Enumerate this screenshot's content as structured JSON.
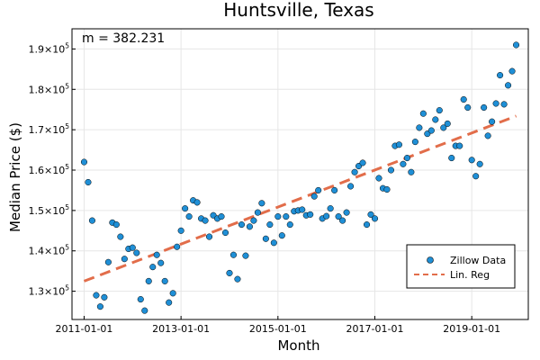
{
  "chart_data": {
    "type": "scatter",
    "title": "Huntsville, Texas",
    "xlabel": "Month",
    "ylabel": "Median Price ($)",
    "annotation": "m = 382.231",
    "x_tick_labels": [
      "2011-01-01",
      "2013-01-01",
      "2015-01-01",
      "2017-01-01",
      "2019-01-01"
    ],
    "x_tick_index": [
      0,
      24,
      48,
      72,
      96
    ],
    "y_ticks": [
      130000,
      140000,
      150000,
      160000,
      170000,
      180000,
      190000
    ],
    "y_tick_mantissa": [
      "1.3×10",
      "1.4×10",
      "1.5×10",
      "1.6×10",
      "1.7×10",
      "1.8×10",
      "1.9×10"
    ],
    "y_tick_exponent": "5",
    "xlim": [
      -3,
      110
    ],
    "ylim": [
      123000,
      195000
    ],
    "grid": true,
    "legend_position": "bottom-right",
    "legend": [
      {
        "label": "Zillow Data",
        "kind": "marker",
        "color": "#1f8fd6"
      },
      {
        "label": "Lin. Reg",
        "kind": "dashed-line",
        "color": "#e26d4a"
      }
    ],
    "series": [
      {
        "name": "Zillow Data",
        "color": "#1f8fd6",
        "start_month": "2011-01-01",
        "month_step": 1,
        "y": [
          162000,
          157000,
          147500,
          129000,
          126200,
          128500,
          137200,
          147000,
          146500,
          143500,
          138000,
          140500,
          140800,
          139500,
          128000,
          125200,
          132500,
          136000,
          139000,
          137000,
          132500,
          127200,
          129500,
          141000,
          145000,
          150500,
          148500,
          152500,
          152000,
          148000,
          147500,
          143500,
          148800,
          148000,
          148500,
          144500,
          134500,
          139000,
          133000,
          146500,
          138800,
          146000,
          147500,
          149500,
          151800,
          143000,
          146500,
          142000,
          148500,
          143800,
          148500,
          146500,
          149800,
          150000,
          150200,
          148800,
          149000,
          153500,
          155000,
          148000,
          148600,
          150500,
          155000,
          148500,
          147500,
          149500,
          156000,
          159500,
          161000,
          161800,
          146500,
          149000,
          148000,
          158000,
          155500,
          155200,
          160000,
          166000,
          166300,
          161500,
          163000,
          159500,
          167000,
          170500,
          174000,
          169000,
          169800,
          172500,
          174800,
          170500,
          171500,
          163000,
          166000,
          166000,
          177500,
          175500,
          162500,
          158500,
          161500,
          175500,
          168500,
          172000,
          176500,
          183500,
          176300,
          181000,
          184500,
          191000
        ]
      },
      {
        "name": "Lin. Reg",
        "color": "#e26d4a",
        "slope": 382.231,
        "y_start": 132500,
        "x_range": [
          0,
          107
        ]
      }
    ]
  }
}
